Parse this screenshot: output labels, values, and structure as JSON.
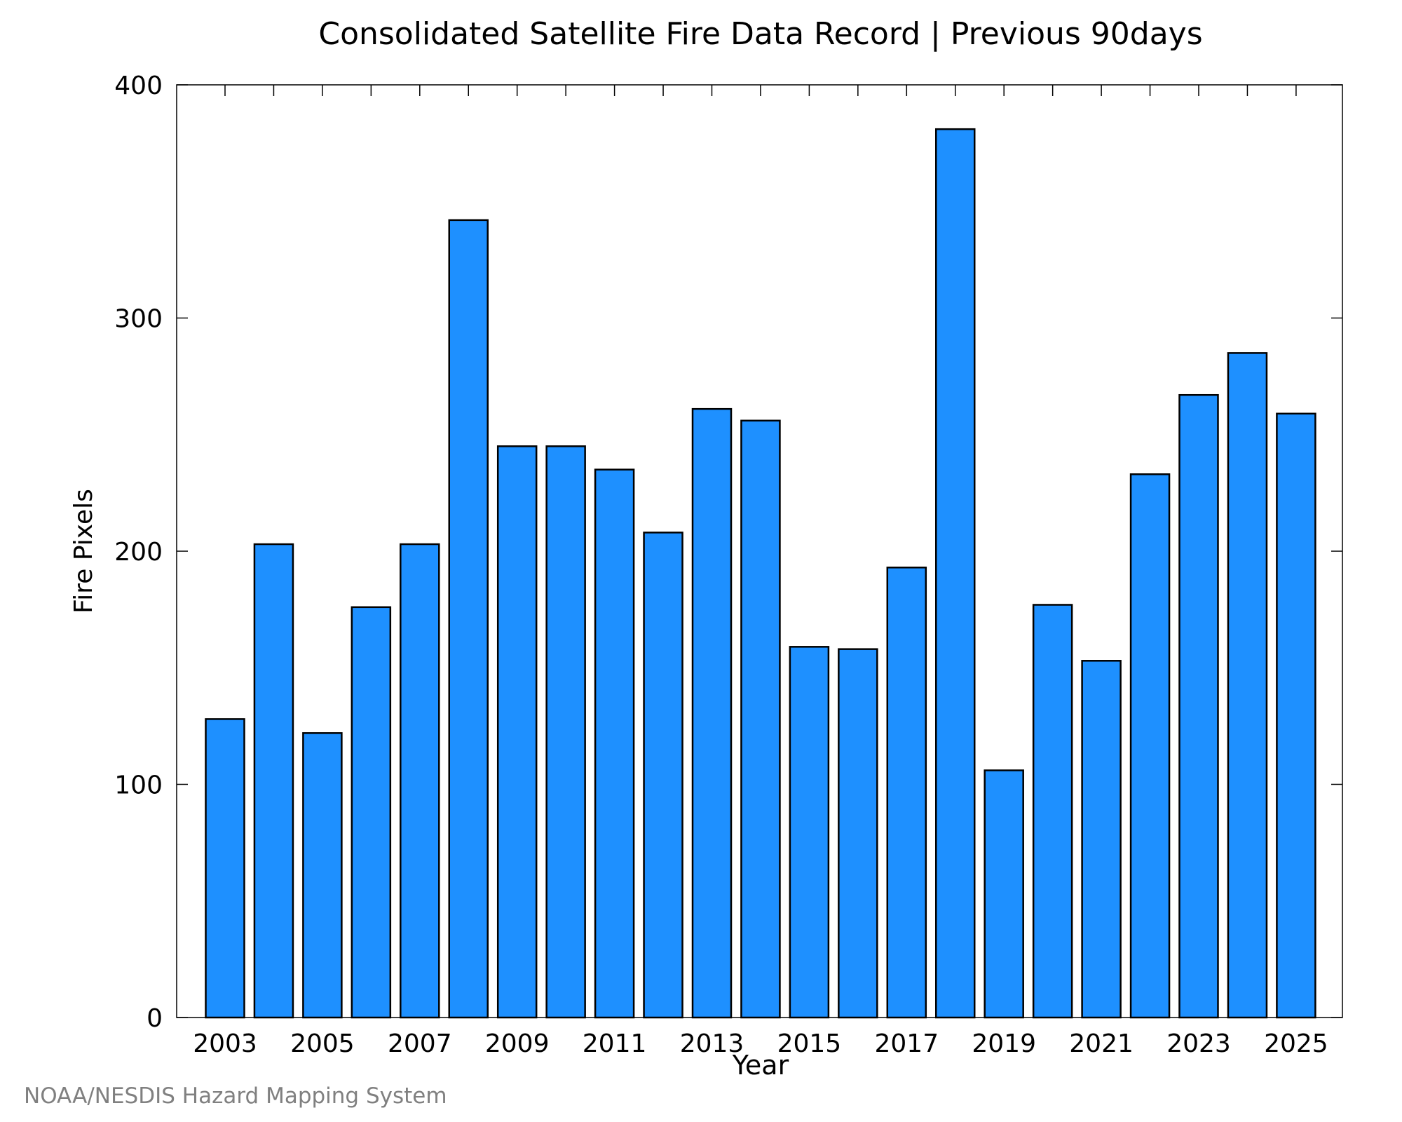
{
  "chart_data": {
    "type": "bar",
    "title": "Consolidated Satellite Fire Data Record | Previous 90days",
    "xlabel": "Year",
    "ylabel": "Fire Pixels",
    "categories": [
      "2003",
      "2004",
      "2005",
      "2006",
      "2007",
      "2008",
      "2009",
      "2010",
      "2011",
      "2012",
      "2013",
      "2014",
      "2015",
      "2016",
      "2017",
      "2018",
      "2019",
      "2020",
      "2021",
      "2022",
      "2023",
      "2024",
      "2025"
    ],
    "values": [
      128,
      203,
      122,
      176,
      203,
      342,
      245,
      245,
      235,
      208,
      261,
      256,
      159,
      158,
      193,
      381,
      106,
      177,
      153,
      233,
      267,
      285,
      259
    ],
    "ylim": [
      0,
      400
    ],
    "yticks": [
      0,
      100,
      200,
      300,
      400
    ],
    "xtick_labels": [
      "2003",
      "2005",
      "2007",
      "2009",
      "2011",
      "2013",
      "2015",
      "2017",
      "2019",
      "2021",
      "2023",
      "2025"
    ],
    "bar_color": "#1E90FF",
    "grid": false,
    "credit": "NOAA/NESDIS Hazard Mapping System"
  }
}
